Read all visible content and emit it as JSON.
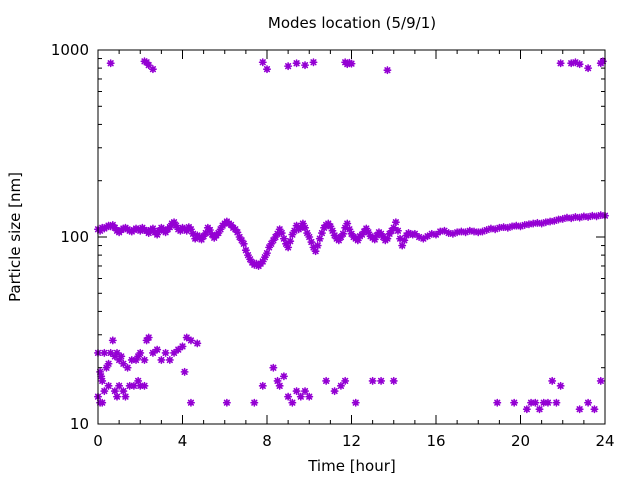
{
  "chart_data": {
    "type": "scatter",
    "title": "Modes location (5/9/1)",
    "xlabel": "Time [hour]",
    "ylabel": "Particle size [nm]",
    "xlim": [
      0,
      24
    ],
    "ylim": [
      10,
      1000
    ],
    "yscale": "log",
    "grid": false,
    "x_ticks": [
      0,
      4,
      8,
      12,
      16,
      20,
      24
    ],
    "x_tick_labels": [
      "0",
      "4",
      "8",
      "12",
      "16",
      "20",
      "24"
    ],
    "y_ticks": [
      10,
      100,
      1000
    ],
    "y_tick_labels": [
      "10",
      "100",
      "1000"
    ],
    "marker_color": "#9400d3",
    "series": [
      {
        "points": [
          [
            0.6,
            850
          ],
          [
            2.2,
            870
          ],
          [
            2.3,
            860
          ],
          [
            2.4,
            830
          ],
          [
            2.6,
            790
          ],
          [
            7.8,
            860
          ],
          [
            8.0,
            790
          ],
          [
            9.0,
            820
          ],
          [
            9.4,
            850
          ],
          [
            9.8,
            830
          ],
          [
            10.2,
            860
          ],
          [
            11.7,
            860
          ],
          [
            11.8,
            840
          ],
          [
            11.9,
            855
          ],
          [
            12.0,
            845
          ],
          [
            13.7,
            780
          ],
          [
            21.9,
            850
          ],
          [
            22.4,
            850
          ],
          [
            22.6,
            860
          ],
          [
            22.8,
            840
          ],
          [
            23.2,
            800
          ],
          [
            23.8,
            850
          ],
          [
            23.9,
            870
          ],
          [
            0.0,
            110
          ],
          [
            0.1,
            108
          ],
          [
            0.2,
            112
          ],
          [
            0.3,
            111
          ],
          [
            0.4,
            113
          ],
          [
            0.5,
            115
          ],
          [
            0.6,
            114
          ],
          [
            0.7,
            116
          ],
          [
            0.8,
            112
          ],
          [
            0.9,
            108
          ],
          [
            1.0,
            106
          ],
          [
            1.1,
            109
          ],
          [
            1.2,
            111
          ],
          [
            1.3,
            112
          ],
          [
            1.4,
            110
          ],
          [
            1.5,
            108
          ],
          [
            1.6,
            107
          ],
          [
            1.7,
            109
          ],
          [
            1.8,
            111
          ],
          [
            1.9,
            110
          ],
          [
            2.0,
            108
          ],
          [
            2.1,
            112
          ],
          [
            2.2,
            109
          ],
          [
            2.3,
            108
          ],
          [
            2.4,
            105
          ],
          [
            2.5,
            109
          ],
          [
            2.6,
            111
          ],
          [
            2.7,
            106
          ],
          [
            2.8,
            103
          ],
          [
            2.9,
            108
          ],
          [
            3.0,
            112
          ],
          [
            3.1,
            109
          ],
          [
            3.2,
            106
          ],
          [
            3.3,
            110
          ],
          [
            3.4,
            113
          ],
          [
            3.5,
            118
          ],
          [
            3.6,
            120
          ],
          [
            3.7,
            115
          ],
          [
            3.8,
            110
          ],
          [
            3.9,
            108
          ],
          [
            4.0,
            112
          ],
          [
            4.1,
            110
          ],
          [
            4.2,
            108
          ],
          [
            4.3,
            113
          ],
          [
            4.4,
            110
          ],
          [
            4.5,
            104
          ],
          [
            4.6,
            98
          ],
          [
            4.7,
            102
          ],
          [
            4.8,
            100
          ],
          [
            4.9,
            97
          ],
          [
            5.0,
            101
          ],
          [
            5.1,
            105
          ],
          [
            5.2,
            112
          ],
          [
            5.3,
            109
          ],
          [
            5.4,
            103
          ],
          [
            5.5,
            99
          ],
          [
            5.6,
            102
          ],
          [
            5.7,
            105
          ],
          [
            5.8,
            110
          ],
          [
            5.9,
            115
          ],
          [
            6.0,
            118
          ],
          [
            6.1,
            121
          ],
          [
            6.2,
            118
          ],
          [
            6.3,
            116
          ],
          [
            6.4,
            112
          ],
          [
            6.5,
            110
          ],
          [
            6.6,
            106
          ],
          [
            6.7,
            100
          ],
          [
            6.8,
            96
          ],
          [
            6.9,
            92
          ],
          [
            7.0,
            85
          ],
          [
            7.1,
            80
          ],
          [
            7.2,
            76
          ],
          [
            7.3,
            73
          ],
          [
            7.4,
            71
          ],
          [
            7.5,
            72
          ],
          [
            7.6,
            70
          ],
          [
            7.7,
            72
          ],
          [
            7.8,
            74
          ],
          [
            7.9,
            78
          ],
          [
            8.0,
            82
          ],
          [
            8.1,
            88
          ],
          [
            8.2,
            92
          ],
          [
            8.3,
            96
          ],
          [
            8.4,
            100
          ],
          [
            8.5,
            104
          ],
          [
            8.6,
            110
          ],
          [
            8.7,
            105
          ],
          [
            8.8,
            98
          ],
          [
            8.9,
            92
          ],
          [
            9.0,
            88
          ],
          [
            9.1,
            95
          ],
          [
            9.2,
            103
          ],
          [
            9.3,
            108
          ],
          [
            9.4,
            115
          ],
          [
            9.5,
            110
          ],
          [
            9.6,
            112
          ],
          [
            9.7,
            118
          ],
          [
            9.8,
            112
          ],
          [
            9.9,
            105
          ],
          [
            10.0,
            100
          ],
          [
            10.1,
            94
          ],
          [
            10.2,
            88
          ],
          [
            10.3,
            84
          ],
          [
            10.4,
            90
          ],
          [
            10.5,
            98
          ],
          [
            10.6,
            105
          ],
          [
            10.7,
            112
          ],
          [
            10.8,
            116
          ],
          [
            10.9,
            118
          ],
          [
            11.0,
            114
          ],
          [
            11.1,
            108
          ],
          [
            11.2,
            102
          ],
          [
            11.3,
            98
          ],
          [
            11.4,
            96
          ],
          [
            11.5,
            100
          ],
          [
            11.6,
            104
          ],
          [
            11.7,
            112
          ],
          [
            11.8,
            118
          ],
          [
            11.9,
            110
          ],
          [
            12.0,
            104
          ],
          [
            12.1,
            100
          ],
          [
            12.2,
            98
          ],
          [
            12.3,
            96
          ],
          [
            12.4,
            101
          ],
          [
            12.5,
            103
          ],
          [
            12.6,
            107
          ],
          [
            12.7,
            111
          ],
          [
            12.8,
            106
          ],
          [
            12.9,
            101
          ],
          [
            13.0,
            99
          ],
          [
            13.1,
            97
          ],
          [
            13.2,
            102
          ],
          [
            13.3,
            106
          ],
          [
            13.4,
            104
          ],
          [
            13.5,
            100
          ],
          [
            13.6,
            96
          ],
          [
            13.7,
            98
          ],
          [
            13.8,
            104
          ],
          [
            13.9,
            108
          ],
          [
            14.0,
            112
          ],
          [
            14.1,
            120
          ],
          [
            14.2,
            108
          ],
          [
            14.3,
            98
          ],
          [
            14.4,
            90
          ],
          [
            14.5,
            96
          ],
          [
            14.6,
            102
          ],
          [
            14.7,
            105
          ],
          [
            14.8,
            104
          ],
          [
            14.9,
            103
          ],
          [
            15.0,
            104
          ],
          [
            15.2,
            100
          ],
          [
            15.4,
            98
          ],
          [
            15.6,
            101
          ],
          [
            15.8,
            104
          ],
          [
            16.0,
            103
          ],
          [
            16.2,
            107
          ],
          [
            16.4,
            108
          ],
          [
            16.6,
            105
          ],
          [
            16.8,
            104
          ],
          [
            17.0,
            106
          ],
          [
            17.2,
            107
          ],
          [
            17.4,
            106
          ],
          [
            17.6,
            108
          ],
          [
            17.8,
            107
          ],
          [
            18.0,
            106
          ],
          [
            18.2,
            107
          ],
          [
            18.4,
            109
          ],
          [
            18.6,
            111
          ],
          [
            18.8,
            110
          ],
          [
            19.0,
            112
          ],
          [
            19.2,
            113
          ],
          [
            19.4,
            112
          ],
          [
            19.6,
            114
          ],
          [
            19.8,
            115
          ],
          [
            20.0,
            114
          ],
          [
            20.2,
            116
          ],
          [
            20.4,
            117
          ],
          [
            20.6,
            118
          ],
          [
            20.8,
            119
          ],
          [
            21.0,
            118
          ],
          [
            21.2,
            120
          ],
          [
            21.4,
            121
          ],
          [
            21.6,
            122
          ],
          [
            21.8,
            124
          ],
          [
            22.0,
            125
          ],
          [
            22.2,
            127
          ],
          [
            22.4,
            126
          ],
          [
            22.6,
            128
          ],
          [
            22.8,
            127
          ],
          [
            23.0,
            129
          ],
          [
            23.2,
            128
          ],
          [
            23.4,
            130
          ],
          [
            23.6,
            129
          ],
          [
            23.8,
            131
          ],
          [
            24.0,
            130
          ],
          [
            0.0,
            24
          ],
          [
            0.1,
            19
          ],
          [
            0.15,
            18
          ],
          [
            0.2,
            17
          ],
          [
            0.3,
            24
          ],
          [
            0.4,
            20
          ],
          [
            0.5,
            21
          ],
          [
            0.6,
            24
          ],
          [
            0.7,
            28
          ],
          [
            0.8,
            23
          ],
          [
            0.9,
            24
          ],
          [
            1.0,
            22
          ],
          [
            1.1,
            23
          ],
          [
            1.2,
            21
          ],
          [
            1.4,
            20
          ],
          [
            1.6,
            22
          ],
          [
            1.8,
            22
          ],
          [
            1.9,
            23
          ],
          [
            2.0,
            24
          ],
          [
            2.2,
            22
          ],
          [
            2.3,
            28
          ],
          [
            2.4,
            29
          ],
          [
            2.6,
            24
          ],
          [
            2.8,
            25
          ],
          [
            3.0,
            22
          ],
          [
            3.2,
            24
          ],
          [
            3.4,
            22
          ],
          [
            3.6,
            24
          ],
          [
            3.8,
            25
          ],
          [
            4.0,
            26
          ],
          [
            4.2,
            29
          ],
          [
            4.4,
            28
          ],
          [
            4.7,
            27
          ],
          [
            4.1,
            19
          ],
          [
            0.0,
            14
          ],
          [
            0.1,
            13
          ],
          [
            0.2,
            13
          ],
          [
            0.3,
            15
          ],
          [
            0.5,
            16
          ],
          [
            0.8,
            15
          ],
          [
            0.9,
            14
          ],
          [
            1.0,
            16
          ],
          [
            1.2,
            15
          ],
          [
            1.3,
            14
          ],
          [
            1.5,
            16
          ],
          [
            1.7,
            16
          ],
          [
            1.9,
            17
          ],
          [
            2.0,
            16
          ],
          [
            2.2,
            16
          ],
          [
            4.4,
            13
          ],
          [
            6.1,
            13
          ],
          [
            7.4,
            13
          ],
          [
            7.8,
            16
          ],
          [
            8.3,
            20
          ],
          [
            8.5,
            17
          ],
          [
            8.6,
            16
          ],
          [
            8.8,
            18
          ],
          [
            9.0,
            14
          ],
          [
            9.2,
            13
          ],
          [
            9.4,
            15
          ],
          [
            9.6,
            14
          ],
          [
            9.8,
            15
          ],
          [
            10.0,
            14
          ],
          [
            10.8,
            17
          ],
          [
            11.2,
            15
          ],
          [
            11.5,
            16
          ],
          [
            11.7,
            17
          ],
          [
            12.2,
            13
          ],
          [
            13.0,
            17
          ],
          [
            13.4,
            17
          ],
          [
            14.0,
            17
          ],
          [
            18.9,
            13
          ],
          [
            19.7,
            13
          ],
          [
            20.3,
            12
          ],
          [
            20.5,
            13
          ],
          [
            20.7,
            13
          ],
          [
            20.9,
            12
          ],
          [
            21.1,
            13
          ],
          [
            21.3,
            13
          ],
          [
            21.5,
            17
          ],
          [
            21.7,
            13
          ],
          [
            21.9,
            16
          ],
          [
            22.8,
            12
          ],
          [
            23.2,
            13
          ],
          [
            23.5,
            12
          ],
          [
            23.8,
            17
          ]
        ]
      }
    ]
  }
}
